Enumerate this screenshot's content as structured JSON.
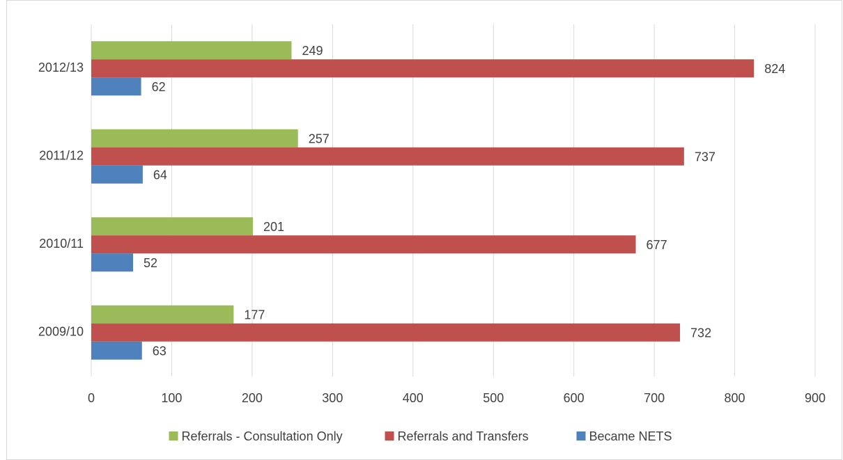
{
  "chart_data": {
    "type": "bar",
    "orientation": "horizontal",
    "categories": [
      "2009/10",
      "2010/11",
      "2011/12",
      "2012/13"
    ],
    "series": [
      {
        "name": "Referrals - Consultation Only",
        "color": "#9bbb59",
        "values": [
          177,
          201,
          257,
          249
        ]
      },
      {
        "name": "Referrals and Transfers",
        "color": "#c0504d",
        "values": [
          732,
          677,
          737,
          824
        ]
      },
      {
        "name": "Became NETS",
        "color": "#4f81bd",
        "values": [
          63,
          52,
          64,
          62
        ]
      }
    ],
    "xlim": [
      0,
      900
    ],
    "xticks": [
      0,
      100,
      200,
      300,
      400,
      500,
      600,
      700,
      800,
      900
    ],
    "grid": true,
    "legend": "bottom"
  }
}
